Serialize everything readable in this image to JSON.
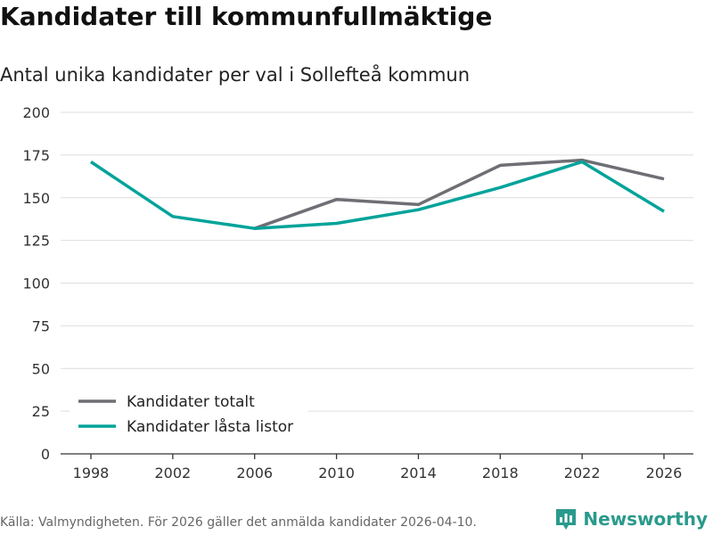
{
  "header": {
    "title": "Kandidater till kommunfullmäktige",
    "subtitle": "Antal unika kandidater per val i Sollefteå kommun"
  },
  "footer": {
    "source": "Källa: Valmyndigheten. För 2026 gäller det anmälda kandidater 2026-04-10.",
    "brand": "Newsworthy"
  },
  "colors": {
    "series_total": "#6e6e75",
    "series_locked": "#00a39a",
    "brand": "#2a9a8c"
  },
  "chart_data": {
    "type": "line",
    "title": "Kandidater till kommunfullmäktige",
    "subtitle": "Antal unika kandidater per val i Sollefteå kommun",
    "x": [
      1998,
      2002,
      2006,
      2010,
      2014,
      2018,
      2022,
      2026
    ],
    "xticks": [
      "1998",
      "2002",
      "2006",
      "2010",
      "2014",
      "2018",
      "2022",
      "2026"
    ],
    "ylim": [
      0,
      200
    ],
    "yticks": [
      0,
      25,
      50,
      75,
      100,
      125,
      150,
      175,
      200
    ],
    "grid": true,
    "legend_position": "bottom-left",
    "series": [
      {
        "name": "Kandidater totalt",
        "color": "#6e6e75",
        "values": [
          null,
          null,
          132,
          149,
          146,
          169,
          172,
          161
        ]
      },
      {
        "name": "Kandidater låsta listor",
        "color": "#00a39a",
        "values": [
          171,
          139,
          132,
          135,
          143,
          156,
          171,
          142
        ]
      }
    ]
  }
}
